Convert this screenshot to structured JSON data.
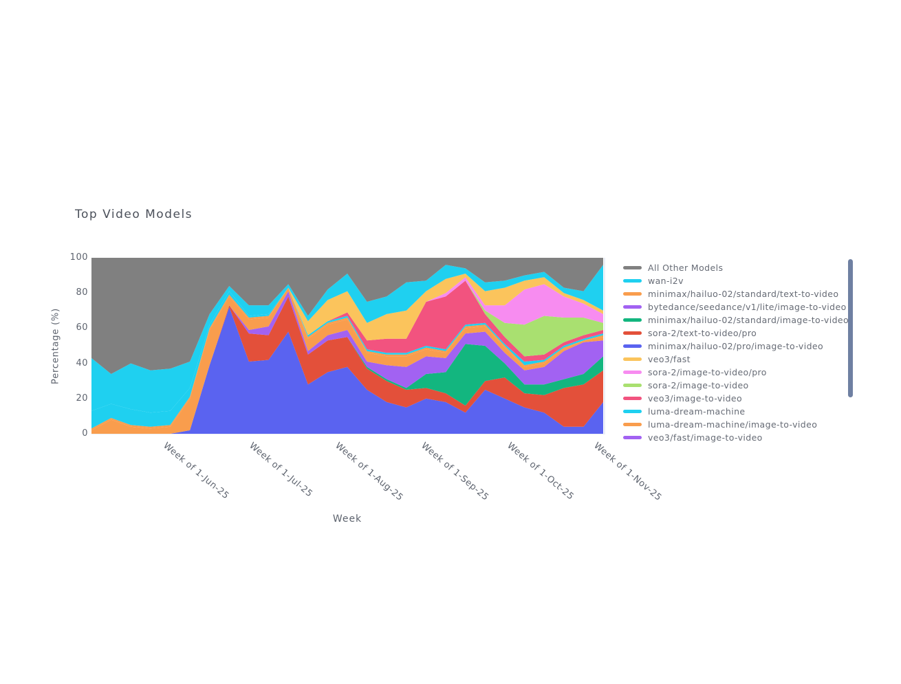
{
  "chart": {
    "title": "Top Video Models",
    "x_axis": {
      "title": "Week"
    },
    "y_axis": {
      "title": "Percentage (%)"
    }
  },
  "chart_data": {
    "type": "area",
    "stacked": true,
    "normalized": "percent",
    "title": "Top Video Models",
    "xlabel": "Week",
    "ylabel": "Percentage (%)",
    "ylim": [
      0,
      100
    ],
    "n_points": 27,
    "x_tick_labels": [
      "Week of 1-Jun-25",
      "Week of 1-Jul-25",
      "Week of 1-Aug-25",
      "Week of 1-Sep-25",
      "Week of 1-Oct-25",
      "Week of 1-Nov-25"
    ],
    "x_tick_positions": [
      3.99,
      8.35,
      12.72,
      17.09,
      21.46,
      25.86
    ],
    "y_tick_labels": [
      "0",
      "20",
      "40",
      "60",
      "80",
      "100"
    ],
    "y_tick_values": [
      0,
      20,
      40,
      60,
      80,
      100
    ],
    "grid": false,
    "legend_position": "right",
    "legend_scrollable": true,
    "series": [
      {
        "name": "minimax/hailuo-02/pro/image-to-video",
        "color": "#5a63f0",
        "values": [
          0,
          0,
          0,
          0,
          0,
          2,
          39,
          72,
          41,
          42,
          58,
          28,
          35,
          38,
          25,
          18,
          15,
          20,
          18,
          12,
          25,
          20,
          15,
          12,
          4,
          4,
          18
        ]
      },
      {
        "name": "sora-2/text-to-video/pro",
        "color": "#e3503a",
        "values": [
          0,
          0,
          0,
          0,
          0,
          0,
          0,
          1,
          16,
          14,
          20,
          17,
          18,
          17,
          12,
          12,
          10,
          6,
          5,
          4,
          5,
          12,
          8,
          10,
          22,
          24,
          18
        ]
      },
      {
        "name": "minimax/hailuo-02/standard/image-to-video",
        "color": "#13b67f",
        "values": [
          0,
          0,
          0,
          0,
          0,
          0,
          0,
          0,
          0,
          0,
          0,
          0,
          0,
          0,
          1,
          1,
          1,
          8,
          12,
          35,
          20,
          8,
          5,
          6,
          5,
          6,
          8
        ]
      },
      {
        "name": "bytedance/seedance/v1/lite/image-to-video",
        "color": "#a262f2",
        "values": [
          0,
          0,
          0,
          0,
          0,
          0,
          0,
          0,
          2,
          5,
          3,
          2,
          3,
          4,
          3,
          8,
          12,
          10,
          8,
          6,
          8,
          6,
          8,
          10,
          16,
          18,
          9
        ]
      },
      {
        "name": "minimax/hailuo-02/standard/text-to-video",
        "color": "#f99d4d",
        "values": [
          2,
          8,
          4,
          3,
          4,
          18,
          20,
          5,
          6,
          5,
          2,
          7,
          6,
          6,
          5,
          5,
          6,
          4,
          3,
          3,
          3,
          3,
          2,
          2,
          1,
          1,
          2
        ]
      },
      {
        "name": "luma-dream-machine/image-to-video",
        "color": "#f99d4d",
        "values": [
          1,
          1,
          1,
          1,
          1,
          1,
          1,
          1,
          1,
          1,
          0,
          1,
          1,
          1,
          1,
          1,
          1,
          1,
          1,
          1,
          1,
          1,
          1,
          1,
          1,
          0,
          1
        ]
      },
      {
        "name": "luma-dream-machine",
        "color": "#1fd0f0",
        "values": [
          10,
          8,
          9,
          8,
          8,
          5,
          2,
          2,
          1,
          1,
          0,
          1,
          1,
          1,
          1,
          1,
          1,
          1,
          1,
          1,
          1,
          1,
          2,
          1,
          1,
          1,
          1
        ]
      },
      {
        "name": "veo3/image-to-video",
        "color": "#f2537f",
        "values": [
          0,
          0,
          0,
          0,
          0,
          0,
          0,
          0,
          0,
          0,
          0,
          0,
          0,
          2,
          5,
          8,
          8,
          25,
          30,
          25,
          5,
          4,
          3,
          3,
          2,
          2,
          2
        ]
      },
      {
        "name": "sora-2/image-to-video",
        "color": "#a9e070",
        "values": [
          0,
          0,
          0,
          0,
          0,
          0,
          0,
          0,
          0,
          0,
          0,
          0,
          0,
          0,
          0,
          0,
          0,
          0,
          0,
          0,
          2,
          8,
          18,
          22,
          14,
          10,
          4
        ]
      },
      {
        "name": "sora-2/image-to-video/pro",
        "color": "#f78cf0",
        "values": [
          0,
          0,
          0,
          0,
          0,
          0,
          0,
          0,
          0,
          0,
          0,
          0,
          0,
          0,
          0,
          0,
          0,
          0,
          2,
          2,
          3,
          10,
          20,
          18,
          12,
          8,
          5
        ]
      },
      {
        "name": "veo3/fast",
        "color": "#fbc45c",
        "values": [
          0,
          0,
          0,
          0,
          0,
          0,
          0,
          0,
          0,
          0,
          0,
          8,
          12,
          12,
          10,
          14,
          16,
          6,
          8,
          2,
          8,
          10,
          5,
          4,
          2,
          2,
          2
        ]
      },
      {
        "name": "wan-i2v",
        "color": "#1fd0f0",
        "values": [
          30,
          17,
          26,
          24,
          24,
          15,
          6,
          3,
          6,
          5,
          2,
          3,
          6,
          10,
          12,
          10,
          16,
          6,
          8,
          3,
          5,
          4,
          3,
          3,
          3,
          5,
          26
        ]
      },
      {
        "name": "All Other Models",
        "color": "#808080",
        "values": [
          57,
          66,
          60,
          64,
          63,
          59,
          32,
          16,
          27,
          27,
          15,
          33,
          18,
          9,
          25,
          22,
          14,
          13,
          4,
          6,
          14,
          13,
          10,
          8,
          17,
          19,
          4
        ]
      }
    ],
    "legend_items": [
      {
        "label": "All Other Models",
        "color": "#808080"
      },
      {
        "label": "wan-i2v",
        "color": "#1fd0f0"
      },
      {
        "label": "minimax/hailuo-02/standard/text-to-video",
        "color": "#f99d4d"
      },
      {
        "label": "bytedance/seedance/v1/lite/image-to-video",
        "color": "#a262f2"
      },
      {
        "label": "minimax/hailuo-02/standard/image-to-video",
        "color": "#13b67f"
      },
      {
        "label": "sora-2/text-to-video/pro",
        "color": "#e3503a"
      },
      {
        "label": "minimax/hailuo-02/pro/image-to-video",
        "color": "#5a63f0"
      },
      {
        "label": "veo3/fast",
        "color": "#fbc45c"
      },
      {
        "label": "sora-2/image-to-video/pro",
        "color": "#f78cf0"
      },
      {
        "label": "sora-2/image-to-video",
        "color": "#a9e070"
      },
      {
        "label": "veo3/image-to-video",
        "color": "#f2537f"
      },
      {
        "label": "luma-dream-machine",
        "color": "#1fd0f0"
      },
      {
        "label": "luma-dream-machine/image-to-video",
        "color": "#f99d4d"
      },
      {
        "label": "veo3/fast/image-to-video",
        "color": "#a262f2",
        "clipped": true
      }
    ]
  },
  "layout_colors": {
    "background": "#ffffff",
    "title_text": "#4b505a",
    "axis_text": "#5d636e",
    "legend_text": "#666b75",
    "legend_scrollbar": "#6f80a2",
    "axis_line": "#e9edf5"
  }
}
